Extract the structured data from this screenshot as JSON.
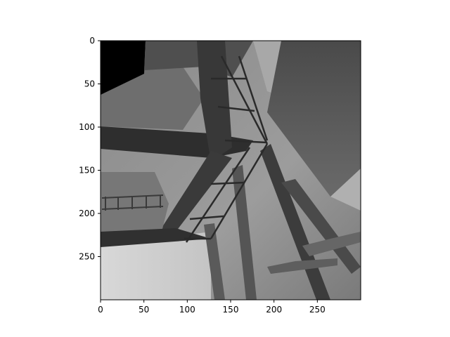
{
  "chart_data": {
    "type": "heatmap",
    "title": "",
    "xlabel": "",
    "ylabel": "",
    "colormap": "gray",
    "image_width": 300,
    "image_height": 300,
    "xlim": [
      0,
      300
    ],
    "ylim": [
      300,
      0
    ],
    "x_ticks": [
      0,
      50,
      100,
      150,
      200,
      250
    ],
    "y_ticks": [
      0,
      50,
      100,
      150,
      200,
      250
    ],
    "grid": false,
    "legend": "none",
    "content": "grayscale depth-style render of a steel truss / lattice tower structure with beams and ladder rungs"
  }
}
